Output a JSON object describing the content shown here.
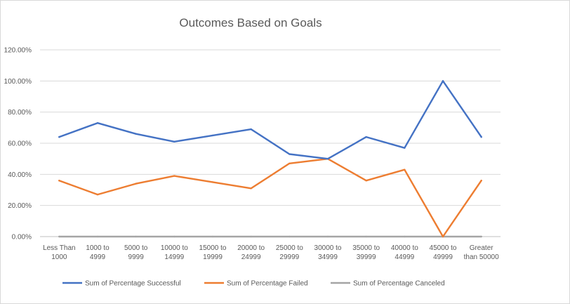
{
  "chart_data": {
    "type": "line",
    "title": "Outcomes Based on Goals",
    "categories": [
      [
        "Less Than",
        "1000"
      ],
      [
        "1000 to",
        "4999"
      ],
      [
        "5000 to",
        "9999"
      ],
      [
        "10000 to",
        "14999"
      ],
      [
        "15000 to",
        "19999"
      ],
      [
        "20000 to",
        "24999"
      ],
      [
        "25000 to",
        "29999"
      ],
      [
        "30000 to",
        "34999"
      ],
      [
        "35000 to",
        "39999"
      ],
      [
        "40000 to",
        "44999"
      ],
      [
        "45000 to",
        "49999"
      ],
      [
        "Greater",
        "than 50000"
      ]
    ],
    "yticks": [
      "0.00%",
      "20.00%",
      "40.00%",
      "60.00%",
      "80.00%",
      "100.00%",
      "120.00%"
    ],
    "ylim": [
      0,
      1.2
    ],
    "grid": true,
    "legend_position": "bottom",
    "series": [
      {
        "name": "Sum of Percentage Successful",
        "color": "#4472c4",
        "values": [
          0.64,
          0.73,
          0.66,
          0.61,
          0.65,
          0.69,
          0.53,
          0.5,
          0.64,
          0.57,
          1.0,
          0.64
        ]
      },
      {
        "name": "Sum of Percentage Failed",
        "color": "#ed7d31",
        "values": [
          0.36,
          0.27,
          0.34,
          0.39,
          0.35,
          0.31,
          0.47,
          0.5,
          0.36,
          0.43,
          0.0,
          0.36
        ]
      },
      {
        "name": "Sum of Percentage Canceled",
        "color": "#a5a5a5",
        "values": [
          0,
          0,
          0,
          0,
          0,
          0,
          0,
          0,
          0,
          0,
          0,
          0
        ]
      }
    ]
  }
}
